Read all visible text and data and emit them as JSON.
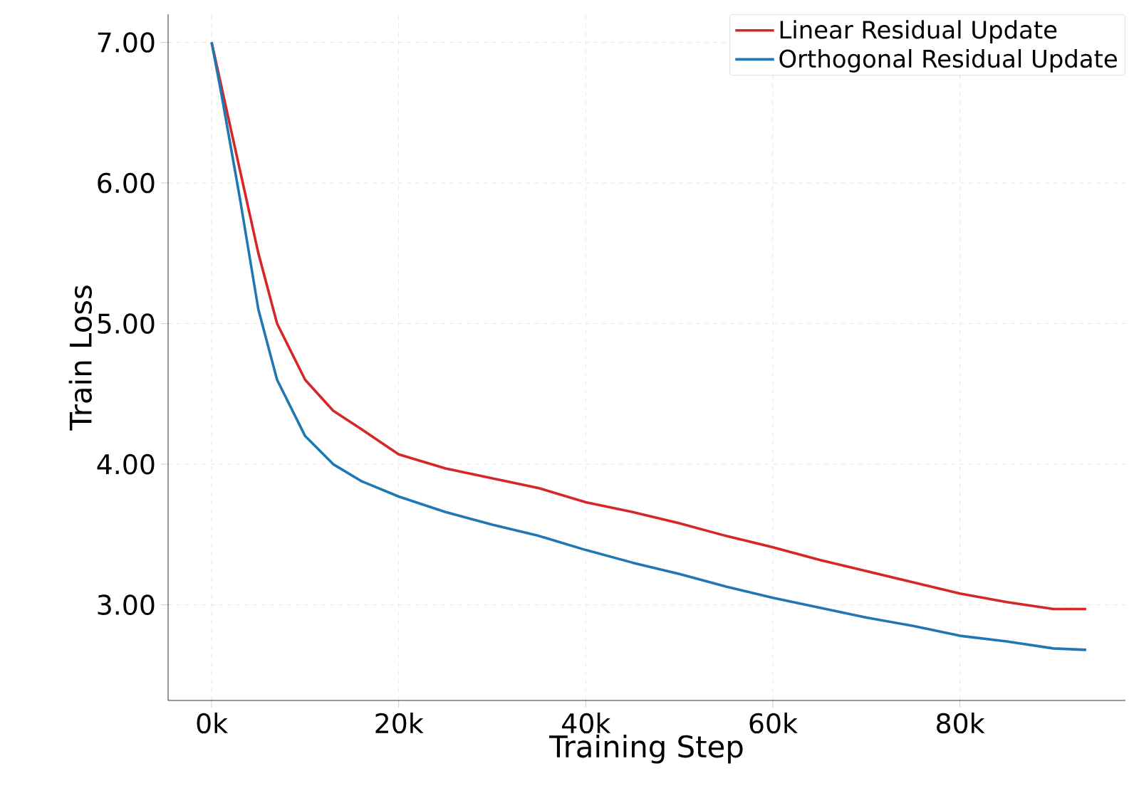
{
  "chart_data": {
    "type": "line",
    "xlabel": "Training Step",
    "ylabel": "Train Loss",
    "xlim": [
      -4650,
      97700
    ],
    "ylim": [
      2.32,
      7.2
    ],
    "xticks": [
      {
        "value": 0,
        "label": "0k"
      },
      {
        "value": 20000,
        "label": "20k"
      },
      {
        "value": 40000,
        "label": "40k"
      },
      {
        "value": 60000,
        "label": "60k"
      },
      {
        "value": 80000,
        "label": "80k"
      }
    ],
    "yticks": [
      {
        "value": 3,
        "label": "3.00"
      },
      {
        "value": 4,
        "label": "4.00"
      },
      {
        "value": 5,
        "label": "5.00"
      },
      {
        "value": 6,
        "label": "6.00"
      },
      {
        "value": 7,
        "label": "7.00"
      }
    ],
    "grid": true,
    "legend": "top right",
    "marker": "none",
    "line_style": "solid",
    "x": [
      0,
      1000,
      3000,
      5000,
      7000,
      10000,
      13000,
      16000,
      20000,
      25000,
      30000,
      35000,
      40000,
      45000,
      50000,
      55000,
      60000,
      65000,
      70000,
      75000,
      80000,
      85000,
      90000,
      93500
    ],
    "series": [
      {
        "name": "Linear Residual Update",
        "color": "#d62728",
        "values": [
          7.0,
          6.7,
          6.1,
          5.5,
          5.0,
          4.6,
          4.38,
          4.25,
          4.07,
          3.97,
          3.9,
          3.83,
          3.73,
          3.66,
          3.58,
          3.49,
          3.41,
          3.32,
          3.24,
          3.16,
          3.08,
          3.02,
          2.97,
          2.97
        ]
      },
      {
        "name": "Orthogonal Residual Update",
        "color": "#1f77b4",
        "values": [
          7.0,
          6.65,
          5.9,
          5.1,
          4.6,
          4.2,
          4.0,
          3.88,
          3.77,
          3.66,
          3.57,
          3.49,
          3.39,
          3.3,
          3.22,
          3.13,
          3.05,
          2.98,
          2.91,
          2.85,
          2.78,
          2.74,
          2.69,
          2.68
        ]
      }
    ]
  }
}
